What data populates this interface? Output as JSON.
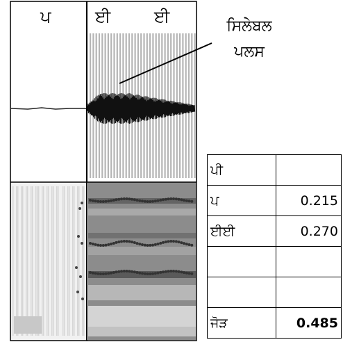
{
  "segments": {
    "consonant_label": "ਪ",
    "vowel_label_1": "ਈ",
    "vowel_label_2": "ਈ"
  },
  "annotation": {
    "line1": "ਸਿਲੇਬਲ",
    "line2": "ਪਲਸ"
  },
  "duration_table": {
    "header": "ਪੀ",
    "rows": [
      {
        "label": "ਪ",
        "value": "0.215"
      },
      {
        "label": "ਈਈ",
        "value": "0.270"
      },
      {
        "label": "",
        "value": ""
      },
      {
        "label": "",
        "value": ""
      }
    ],
    "total": {
      "label": "ਜੋੜ",
      "value": "0.485"
    }
  }
}
